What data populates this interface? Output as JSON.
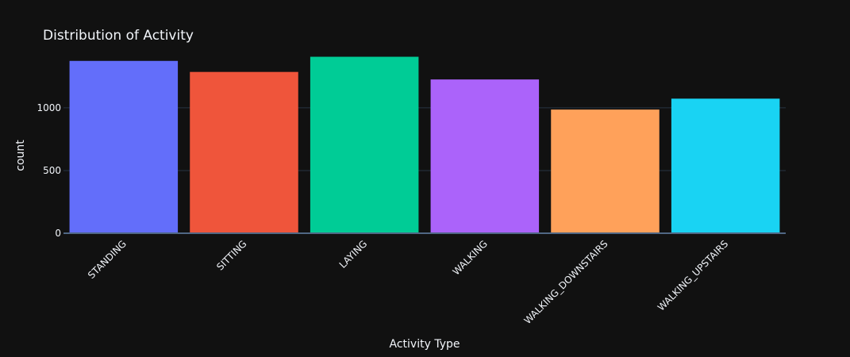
{
  "chart_data": {
    "type": "bar",
    "title": "Distribution of Activity",
    "xlabel": "Activity Type",
    "ylabel": "count",
    "categories": [
      "STANDING",
      "SITTING",
      "LAYING",
      "WALKING",
      "WALKING_DOWNSTAIRS",
      "WALKING_UPSTAIRS"
    ],
    "values": [
      1374,
      1286,
      1407,
      1226,
      986,
      1073
    ],
    "colors": [
      "#636efa",
      "#EF553B",
      "#00cc96",
      "#ab63fa",
      "#FFA15A",
      "#19d3f3"
    ],
    "ylim": [
      0,
      1480
    ],
    "yticks": [
      0,
      500,
      1000
    ],
    "grid": true,
    "background": "#111111"
  }
}
